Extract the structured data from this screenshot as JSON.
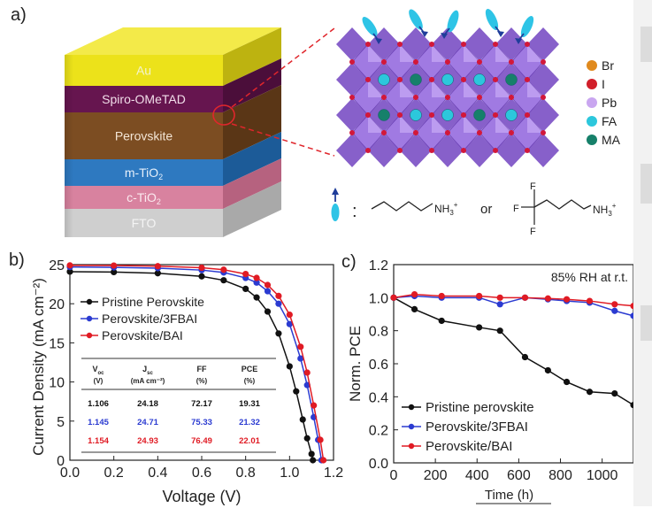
{
  "panel_a": {
    "letter": "a)",
    "layers": [
      {
        "label": "Au",
        "color": "#ece21a",
        "side": "#bdb310",
        "top": "#f3ea49",
        "base": "Au",
        "sub": "",
        "text_color": "#f3f3d0"
      },
      {
        "label": "Spiro-OMeTAD",
        "color": "#66154f",
        "side": "#4b0e3a",
        "top": "",
        "base": "Spiro-OMeTAD",
        "sub": "",
        "text_color": "#f1dde9"
      },
      {
        "label": "Perovskite",
        "color": "#7c4d22",
        "side": "#5a3616",
        "top": "",
        "base": "Perovskite",
        "sub": "",
        "text_color": "#f4e6d6"
      },
      {
        "label": "m-TiO2",
        "color": "#2e79c0",
        "side": "#1c5b98",
        "top": "",
        "base": "m-TiO",
        "sub": "2",
        "text_color": "#e6f0fb"
      },
      {
        "label": "c-TiO2",
        "color": "#d8829f",
        "side": "#b6627f",
        "top": "",
        "base": "c-TiO",
        "sub": "2",
        "text_color": "#fbe9ef"
      },
      {
        "label": "FTO",
        "color": "#cfcfcf",
        "side": "#a9a9a9",
        "top": "",
        "base": "FTO",
        "sub": "",
        "text_color": "#f4f4f4"
      }
    ],
    "legend": [
      {
        "label": "Br",
        "color": "#e08a1e"
      },
      {
        "label": "I",
        "color": "#d11f2a"
      },
      {
        "label": "Pb",
        "color": "#c9a6f0"
      },
      {
        "label": "FA",
        "color": "#2cc7dc"
      },
      {
        "label": "MA",
        "color": "#16806a"
      }
    ],
    "molecule": {
      "colon": ":",
      "nh3_left": "NH",
      "or": "or",
      "f_labels": [
        "F",
        "F",
        "F"
      ],
      "nh3_right": "NH",
      "sub": "3",
      "sup": "+"
    }
  },
  "panel_b": {
    "letter": "b)",
    "chart_data": {
      "type": "line",
      "title": "",
      "xlabel": "Voltage (V)",
      "ylabel": "Current Density (mA cm⁻²)",
      "xlim": [
        0.0,
        1.2
      ],
      "ylim": [
        0,
        25
      ],
      "xticks": [
        "0.0",
        "0.2",
        "0.4",
        "0.6",
        "0.8",
        "1.0",
        "1.2"
      ],
      "yticks": [
        "0",
        "5",
        "10",
        "15",
        "20",
        "25"
      ],
      "series": [
        {
          "name": "Pristine Perovskite",
          "color": "#111111",
          "marker": "circle",
          "x": [
            0.0,
            0.2,
            0.4,
            0.6,
            0.7,
            0.8,
            0.85,
            0.9,
            0.95,
            1.0,
            1.03,
            1.06,
            1.08,
            1.1,
            1.106
          ],
          "y": [
            24.1,
            24.05,
            23.9,
            23.5,
            23.0,
            21.9,
            20.8,
            19.0,
            16.2,
            12.0,
            8.8,
            5.2,
            2.8,
            0.8,
            0.0
          ]
        },
        {
          "name": "Perovskite/3FBAI",
          "color": "#2b3bd1",
          "marker": "circle",
          "x": [
            0.0,
            0.2,
            0.4,
            0.6,
            0.7,
            0.8,
            0.85,
            0.9,
            0.95,
            1.0,
            1.05,
            1.08,
            1.11,
            1.13,
            1.145
          ],
          "y": [
            24.7,
            24.65,
            24.55,
            24.3,
            24.0,
            23.3,
            22.7,
            21.6,
            20.0,
            17.4,
            13.0,
            9.6,
            5.5,
            2.6,
            0.0
          ]
        },
        {
          "name": "Perovskite/BAI",
          "color": "#e01b24",
          "marker": "circle",
          "x": [
            0.0,
            0.2,
            0.4,
            0.6,
            0.7,
            0.8,
            0.85,
            0.9,
            0.95,
            1.0,
            1.05,
            1.08,
            1.11,
            1.14,
            1.154
          ],
          "y": [
            24.9,
            24.88,
            24.8,
            24.6,
            24.35,
            23.8,
            23.3,
            22.4,
            21.0,
            18.6,
            14.5,
            11.2,
            7.0,
            2.6,
            0.0
          ]
        }
      ]
    },
    "table": {
      "headers": [
        {
          "main": "V",
          "sub": "oc",
          "unit": "(V)"
        },
        {
          "main": "J",
          "sub": "sc",
          "unit": "(mA cm⁻²)"
        },
        {
          "main": "FF",
          "sub": "",
          "unit": "(%)"
        },
        {
          "main": "PCE",
          "sub": "",
          "unit": "(%)"
        }
      ],
      "rows": [
        {
          "color": "#111111",
          "cells": [
            "1.106",
            "24.18",
            "72.17",
            "19.31"
          ]
        },
        {
          "color": "#2b3bd1",
          "cells": [
            "1.145",
            "24.71",
            "75.33",
            "21.32"
          ]
        },
        {
          "color": "#e01b24",
          "cells": [
            "1.154",
            "24.93",
            "76.49",
            "22.01"
          ]
        }
      ]
    }
  },
  "panel_c": {
    "letter": "c)",
    "chart_data": {
      "type": "line",
      "title": "",
      "annotation": "85% RH at r.t.",
      "xlabel": "Time (h)",
      "ylabel": "Norm. PCE",
      "xlim": [
        0,
        1150
      ],
      "ylim": [
        0.0,
        1.2
      ],
      "xticks": [
        "0",
        "200",
        "400",
        "600",
        "800",
        "1000"
      ],
      "xtick_values": [
        0,
        200,
        400,
        600,
        800,
        1000
      ],
      "yticks": [
        "0.0",
        "0.2",
        "0.4",
        "0.6",
        "0.8",
        "1.0",
        "1.2"
      ],
      "series": [
        {
          "name": "Pristine perovskite",
          "color": "#111111",
          "marker": "circle",
          "x": [
            0,
            100,
            230,
            410,
            510,
            630,
            740,
            830,
            940,
            1060,
            1150
          ],
          "y": [
            1.0,
            0.93,
            0.86,
            0.82,
            0.8,
            0.64,
            0.56,
            0.49,
            0.43,
            0.42,
            0.35
          ]
        },
        {
          "name": "Perovskite/3FBAI",
          "color": "#2b3bd1",
          "marker": "circle",
          "x": [
            0,
            100,
            230,
            410,
            510,
            630,
            740,
            830,
            940,
            1060,
            1150
          ],
          "y": [
            1.0,
            1.01,
            1.0,
            1.0,
            0.96,
            1.0,
            0.99,
            0.98,
            0.97,
            0.92,
            0.89
          ]
        },
        {
          "name": "Perovskite/BAI",
          "color": "#e01b24",
          "marker": "circle",
          "x": [
            0,
            100,
            230,
            410,
            510,
            630,
            740,
            830,
            940,
            1060,
            1150
          ],
          "y": [
            1.0,
            1.02,
            1.01,
            1.01,
            1.0,
            1.0,
            0.995,
            0.99,
            0.98,
            0.96,
            0.95
          ]
        }
      ]
    }
  }
}
